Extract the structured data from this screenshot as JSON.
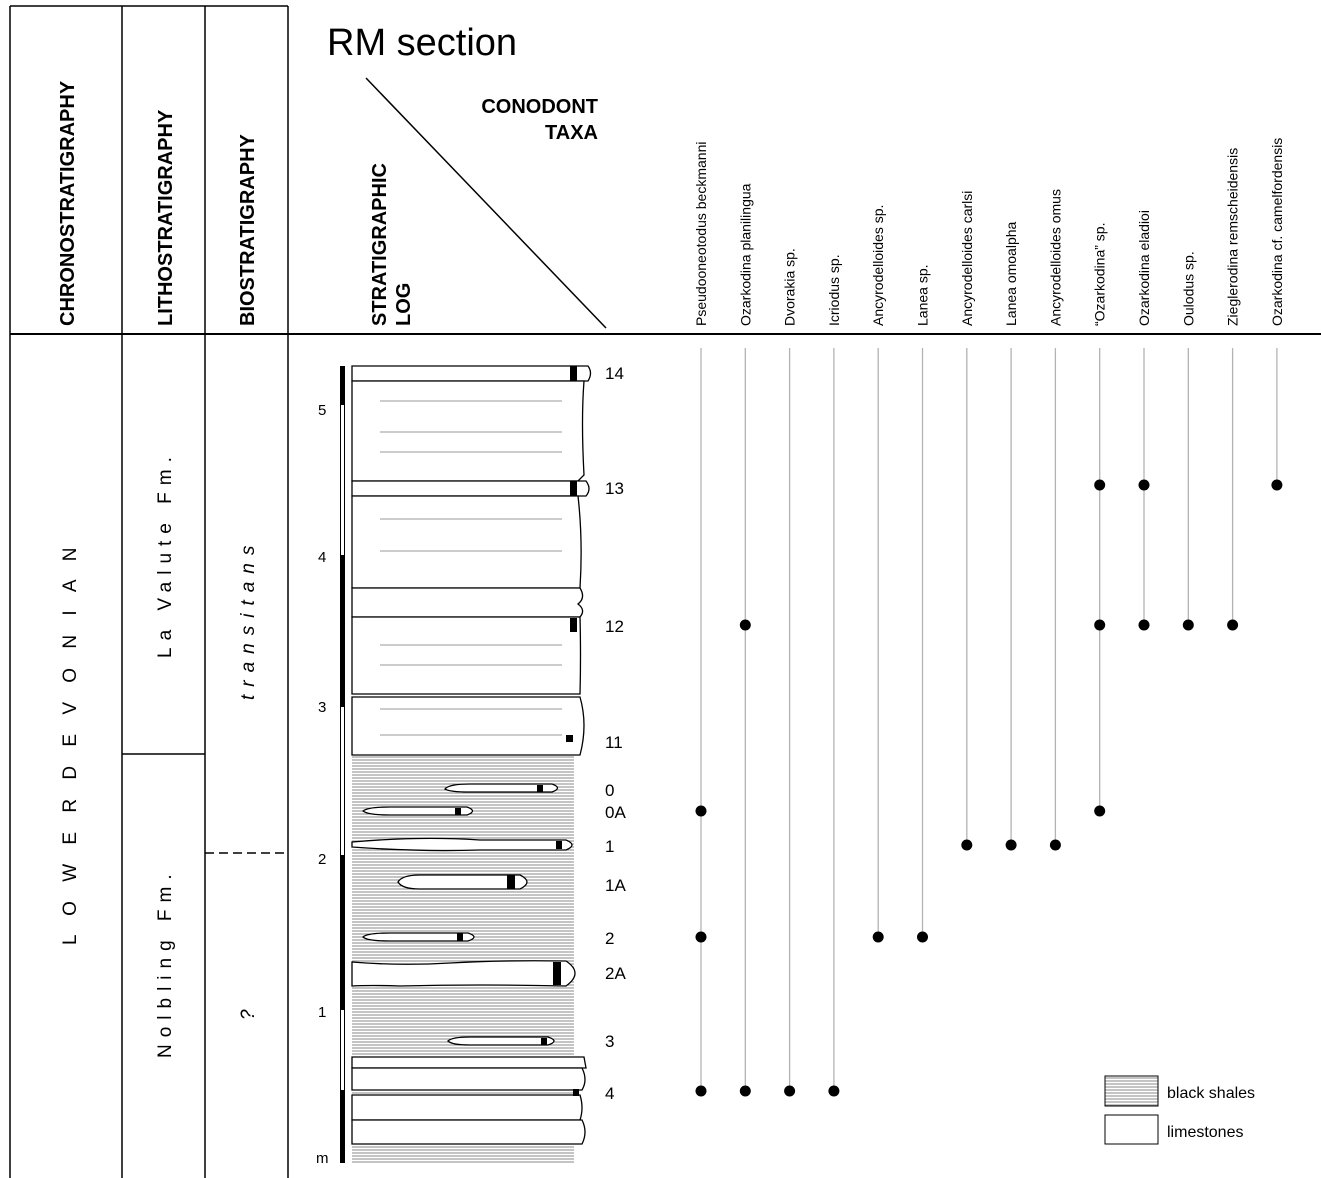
{
  "title": "RM section",
  "headers": {
    "chrono": "CHRONOSTRATIGRAPHY",
    "litho": "LITHOSTRATIGRAPHY",
    "bio": "BIOSTRATIGRAPHY",
    "log_line1": "STRATIGRAPHIC",
    "log_line2": "LOG",
    "taxa_line1": "CONODONT",
    "taxa_line2": "TAXA"
  },
  "chronostratigraphy": "L O W E R   D E V O N I A N",
  "lithostratigraphy": [
    {
      "name": "La Valute Fm."
    },
    {
      "name": "Nolbling Fm."
    }
  ],
  "biostratigraphy": [
    {
      "name": "transitans"
    },
    {
      "name": "?"
    }
  ],
  "scale": {
    "unit": "m",
    "ticks": [
      "1",
      "2",
      "3",
      "4",
      "5"
    ]
  },
  "samples": [
    "14",
    "13",
    "12",
    "11",
    "0",
    "0A",
    "1",
    "1A",
    "2",
    "2A",
    "3",
    "4"
  ],
  "taxa": [
    {
      "name": "Pseudooneotodus beckmanni",
      "occurrences": [
        "4",
        "2",
        "0A"
      ]
    },
    {
      "name": "Ozarkodina planilingua",
      "occurrences": [
        "4",
        "12"
      ]
    },
    {
      "name": "Dvorakia sp.",
      "occurrences": [
        "4"
      ]
    },
    {
      "name": "Icriodus sp.",
      "occurrences": [
        "4"
      ]
    },
    {
      "name": "Ancyrodelloides sp.",
      "occurrences": [
        "2"
      ]
    },
    {
      "name": "Lanea sp.",
      "occurrences": [
        "2"
      ]
    },
    {
      "name": "Ancyrodelloides carlsi",
      "occurrences": [
        "1"
      ]
    },
    {
      "name": "Lanea omoalpha",
      "occurrences": [
        "1"
      ]
    },
    {
      "name": "Ancyrodelloides omus",
      "occurrences": [
        "1"
      ]
    },
    {
      "name": "“Ozarkodina” sp.",
      "occurrences": [
        "0A",
        "12",
        "13"
      ]
    },
    {
      "name": "Ozarkodina eladioi",
      "occurrences": [
        "12",
        "13"
      ]
    },
    {
      "name": "Oulodus sp.",
      "occurrences": [
        "12"
      ]
    },
    {
      "name": "Zieglerodina remscheidensis",
      "occurrences": [
        "12"
      ]
    },
    {
      "name": "Ozarkodina cf. camelfordensis",
      "occurrences": [
        "13"
      ]
    }
  ],
  "legend": {
    "shale": "black shales",
    "limestone": "limestones"
  }
}
